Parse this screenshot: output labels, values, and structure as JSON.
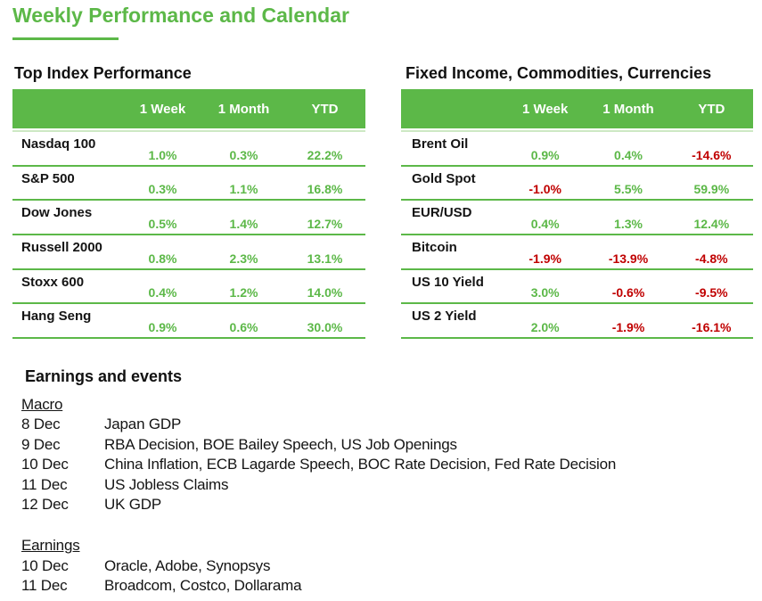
{
  "page": {
    "title": "Weekly Performance and Calendar"
  },
  "colors": {
    "accent_green": "#5cb848",
    "positive_value": "#5cb848",
    "negative_value": "#c00000",
    "header_text": "#ffffff",
    "body_text": "#141414"
  },
  "tables": [
    {
      "title": "Top Index Performance",
      "columns": [
        "1 Week",
        "1 Month",
        "YTD"
      ],
      "rows": [
        {
          "name": "Nasdaq 100",
          "values": [
            "1.0%",
            "0.3%",
            "22.2%"
          ]
        },
        {
          "name": "S&P 500",
          "values": [
            "0.3%",
            "1.1%",
            "16.8%"
          ]
        },
        {
          "name": "Dow Jones",
          "values": [
            "0.5%",
            "1.4%",
            "12.7%"
          ]
        },
        {
          "name": "Russell 2000",
          "values": [
            "0.8%",
            "2.3%",
            "13.1%"
          ]
        },
        {
          "name": "Stoxx 600",
          "values": [
            "0.4%",
            "1.2%",
            "14.0%"
          ]
        },
        {
          "name": "Hang Seng",
          "values": [
            "0.9%",
            "0.6%",
            "30.0%"
          ]
        }
      ]
    },
    {
      "title": "Fixed Income, Commodities, Currencies",
      "columns": [
        "1 Week",
        "1 Month",
        "YTD"
      ],
      "rows": [
        {
          "name": "Brent Oil",
          "values": [
            "0.9%",
            "0.4%",
            "-14.6%"
          ]
        },
        {
          "name": "Gold Spot",
          "values": [
            "-1.0%",
            "5.5%",
            "59.9%"
          ]
        },
        {
          "name": "EUR/USD",
          "values": [
            "0.4%",
            "1.3%",
            "12.4%"
          ]
        },
        {
          "name": "Bitcoin",
          "values": [
            "-1.9%",
            "-13.9%",
            "-4.8%"
          ]
        },
        {
          "name": "US 10 Yield",
          "values": [
            "3.0%",
            "-0.6%",
            "-9.5%"
          ]
        },
        {
          "name": "US 2 Yield",
          "values": [
            "2.0%",
            "-1.9%",
            "-16.1%"
          ]
        }
      ]
    }
  ],
  "events": {
    "heading": "Earnings and events",
    "sections": [
      {
        "title": "Macro",
        "items": [
          {
            "date": "8 Dec",
            "text": "Japan GDP"
          },
          {
            "date": "9 Dec",
            "text": "RBA Decision, BOE Bailey Speech, US Job Openings"
          },
          {
            "date": "10 Dec",
            "text": "China Inflation, ECB Lagarde Speech, BOC Rate Decision, Fed Rate Decision"
          },
          {
            "date": "11 Dec",
            "text": "US Jobless Claims"
          },
          {
            "date": "12 Dec",
            "text": "UK GDP"
          }
        ]
      },
      {
        "title": "Earnings",
        "items": [
          {
            "date": "10 Dec",
            "text": "Oracle, Adobe, Synopsys"
          },
          {
            "date": "11 Dec",
            "text": "Broadcom, Costco, Dollarama"
          }
        ]
      }
    ]
  }
}
